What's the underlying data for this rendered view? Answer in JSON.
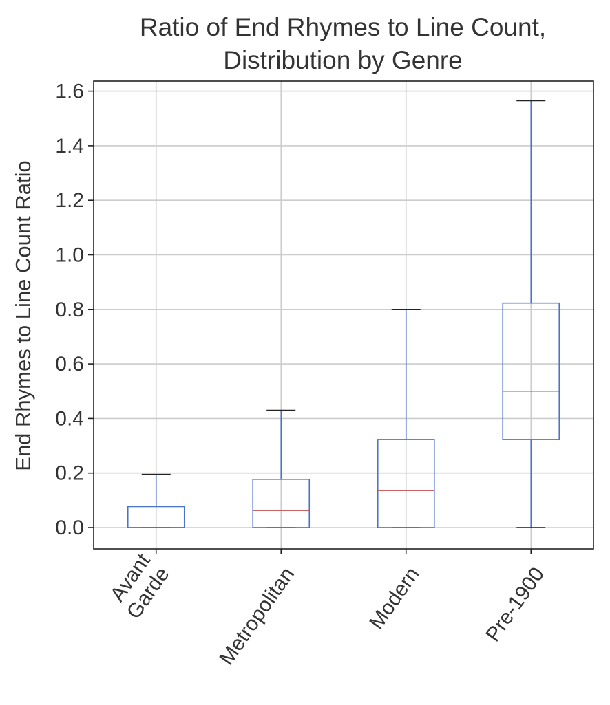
{
  "chart_data": {
    "type": "boxplot",
    "title_lines": [
      "Ratio of End Rhymes to Line Count,",
      "Distribution by Genre"
    ],
    "xlabel": "",
    "ylabel": "End Rhymes to Line Count Ratio",
    "ylim": [
      -0.075,
      1.64
    ],
    "yticks": [
      0.0,
      0.2,
      0.4,
      0.6,
      0.8,
      1.0,
      1.2,
      1.4,
      1.6
    ],
    "ytick_labels": [
      "0.0",
      "0.2",
      "0.4",
      "0.6",
      "0.8",
      "1.0",
      "1.2",
      "1.4",
      "1.6"
    ],
    "grid": true,
    "categories": [
      {
        "label_lines": [
          "Avant",
          "Garde"
        ]
      },
      {
        "label_lines": [
          "Metropolitan"
        ]
      },
      {
        "label_lines": [
          "Modern"
        ]
      },
      {
        "label_lines": [
          "Pre-1900"
        ]
      }
    ],
    "boxes": [
      {
        "whisker_low": 0.0,
        "q1": 0.0,
        "median": 0.0,
        "q3": 0.077,
        "whisker_high": 0.195
      },
      {
        "whisker_low": 0.0,
        "q1": 0.0,
        "median": 0.063,
        "q3": 0.177,
        "whisker_high": 0.43
      },
      {
        "whisker_low": 0.0,
        "q1": 0.0,
        "median": 0.136,
        "q3": 0.323,
        "whisker_high": 0.8
      },
      {
        "whisker_low": 0.0,
        "q1": 0.323,
        "median": 0.5,
        "q3": 0.823,
        "whisker_high": 1.565
      }
    ],
    "colors": {
      "box": "#4a74c9",
      "median": "#c0504d",
      "cap": "#222222",
      "grid": "#cccccc",
      "axes": "#222222",
      "text": "#333333"
    }
  }
}
